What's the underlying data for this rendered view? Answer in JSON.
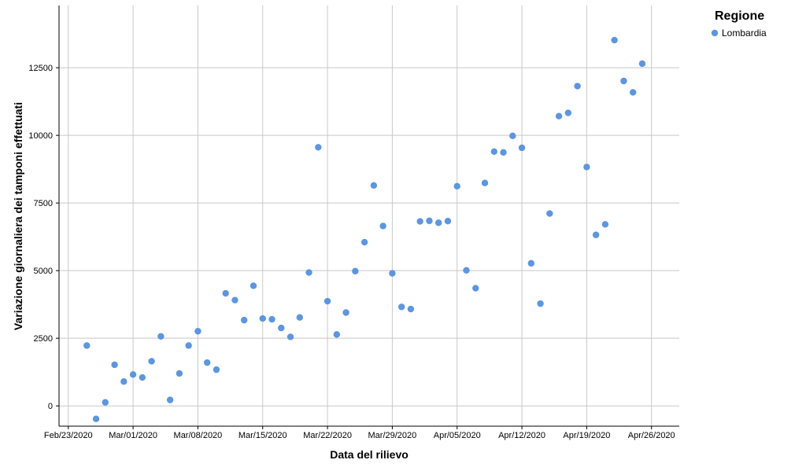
{
  "chart_data": {
    "type": "scatter",
    "title": "",
    "xlabel": "Data del rilievo",
    "ylabel": "Variazione giornaliera dei tamponi effettuati",
    "x_tick_labels": [
      "Feb/23/2020",
      "Mar/01/2020",
      "Mar/08/2020",
      "Mar/15/2020",
      "Mar/22/2020",
      "Mar/29/2020",
      "Apr/05/2020",
      "Apr/12/2020",
      "Apr/19/2020",
      "Apr/26/2020"
    ],
    "xlim": [
      "2020-02-22",
      "2020-04-29"
    ],
    "y_ticks": [
      0,
      2500,
      5000,
      7500,
      10000,
      12500
    ],
    "y_tick_labels": [
      "0",
      "2500",
      "5000",
      "7500",
      "10000",
      "12500"
    ],
    "ylim": [
      -750,
      14800
    ],
    "grid": true,
    "legend": {
      "title": "Regione",
      "placement": "top-right",
      "entries": [
        "Lombardia"
      ]
    },
    "colors": {
      "Lombardia": "#5a96e3"
    },
    "series": [
      {
        "name": "Lombardia",
        "x": [
          "2020-02-25",
          "2020-02-26",
          "2020-02-27",
          "2020-02-28",
          "2020-02-29",
          "2020-03-01",
          "2020-03-02",
          "2020-03-03",
          "2020-03-04",
          "2020-03-05",
          "2020-03-06",
          "2020-03-07",
          "2020-03-08",
          "2020-03-09",
          "2020-03-10",
          "2020-03-11",
          "2020-03-12",
          "2020-03-13",
          "2020-03-14",
          "2020-03-15",
          "2020-03-16",
          "2020-03-17",
          "2020-03-18",
          "2020-03-19",
          "2020-03-20",
          "2020-03-21",
          "2020-03-22",
          "2020-03-23",
          "2020-03-24",
          "2020-03-25",
          "2020-03-26",
          "2020-03-27",
          "2020-03-28",
          "2020-03-29",
          "2020-03-30",
          "2020-03-31",
          "2020-04-01",
          "2020-04-02",
          "2020-04-03",
          "2020-04-04",
          "2020-04-05",
          "2020-04-06",
          "2020-04-07",
          "2020-04-08",
          "2020-04-09",
          "2020-04-10",
          "2020-04-11",
          "2020-04-12",
          "2020-04-13",
          "2020-04-14",
          "2020-04-15",
          "2020-04-16",
          "2020-04-17",
          "2020-04-18",
          "2020-04-19",
          "2020-04-20",
          "2020-04-21",
          "2020-04-22",
          "2020-04-23",
          "2020-04-24",
          "2020-04-25"
        ],
        "y": [
          2230,
          -480,
          130,
          1520,
          900,
          1160,
          1050,
          1650,
          2570,
          220,
          1200,
          2230,
          2760,
          1600,
          1340,
          4160,
          3910,
          3170,
          4440,
          3230,
          3200,
          2880,
          2550,
          3270,
          4930,
          9560,
          3870,
          2640,
          3450,
          4980,
          6050,
          8150,
          6650,
          4900,
          3660,
          3580,
          6820,
          6840,
          6770,
          6830,
          8120,
          5010,
          4350,
          8240,
          9400,
          9370,
          9980,
          9540,
          5270,
          3780,
          7110,
          10710,
          10830,
          11820,
          8830,
          6320,
          6710,
          13520,
          12010,
          11590,
          12650
        ]
      }
    ]
  }
}
